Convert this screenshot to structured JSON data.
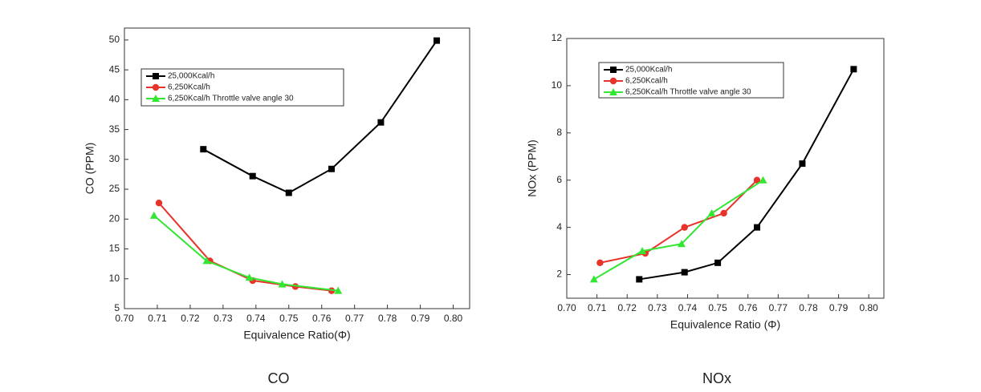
{
  "chart_data": [
    {
      "type": "line",
      "caption": "CO",
      "x_label": "Equivalence Ratio(Φ)",
      "y_label": "CO (PPM)",
      "xlim": [
        0.7,
        0.805
      ],
      "ylim": [
        5,
        52
      ],
      "xticks": [
        {
          "value": 0.7,
          "label": "0.70"
        },
        {
          "value": 0.71,
          "label": "0.71"
        },
        {
          "value": 0.72,
          "label": "0.72"
        },
        {
          "value": 0.73,
          "label": "0.73"
        },
        {
          "value": 0.74,
          "label": "0.74"
        },
        {
          "value": 0.75,
          "label": "0.75"
        },
        {
          "value": 0.76,
          "label": "0.76"
        },
        {
          "value": 0.77,
          "label": "0.77"
        },
        {
          "value": 0.78,
          "label": "0.78"
        },
        {
          "value": 0.79,
          "label": "0.79"
        },
        {
          "value": 0.8,
          "label": "0.80"
        }
      ],
      "yticks": [
        5,
        10,
        15,
        20,
        25,
        30,
        35,
        40,
        45,
        50
      ],
      "legend": "upper-left",
      "series": [
        {
          "name": "25,000Kcal/h",
          "color": "#000000",
          "marker": "square",
          "x": [
            0.724,
            0.739,
            0.75,
            0.763,
            0.778,
            0.795
          ],
          "values": [
            31.7,
            27.2,
            24.4,
            28.4,
            36.2,
            49.9
          ]
        },
        {
          "name": "6,250Kcal/h",
          "color": "#e8332a",
          "marker": "circle",
          "x": [
            0.7105,
            0.726,
            0.739,
            0.752,
            0.763
          ],
          "values": [
            22.7,
            13.0,
            9.7,
            8.7,
            8.0
          ]
        },
        {
          "name": "6,250Kcal/h Throttle valve angle 30",
          "color": "#33e633",
          "marker": "triangle",
          "x": [
            0.709,
            0.725,
            0.738,
            0.748,
            0.765
          ],
          "values": [
            20.6,
            13.0,
            10.2,
            9.1,
            8.0
          ]
        }
      ]
    },
    {
      "type": "line",
      "caption": "NOx",
      "x_label": "Equivalence Ratio (Φ)",
      "y_label": "NOx (PPM)",
      "xlim": [
        0.7,
        0.805
      ],
      "ylim": [
        1,
        12
      ],
      "xticks": [
        {
          "value": 0.7,
          "label": "0.70"
        },
        {
          "value": 0.71,
          "label": "0.71"
        },
        {
          "value": 0.72,
          "label": "0.72"
        },
        {
          "value": 0.73,
          "label": "0.73"
        },
        {
          "value": 0.74,
          "label": "0.74"
        },
        {
          "value": 0.75,
          "label": "0.75"
        },
        {
          "value": 0.76,
          "label": "0.76"
        },
        {
          "value": 0.77,
          "label": "0.77"
        },
        {
          "value": 0.78,
          "label": "0.78"
        },
        {
          "value": 0.79,
          "label": "0.79"
        },
        {
          "value": 0.8,
          "label": "0.80"
        }
      ],
      "yticks": [
        2,
        4,
        6,
        8,
        10,
        12
      ],
      "legend": "upper-left",
      "series": [
        {
          "name": "25,000Kcal/h",
          "color": "#000000",
          "marker": "square",
          "x": [
            0.724,
            0.739,
            0.75,
            0.763,
            0.778,
            0.795
          ],
          "values": [
            1.8,
            2.1,
            2.5,
            4.0,
            6.7,
            10.7
          ]
        },
        {
          "name": "6,250Kcal/h",
          "color": "#e8332a",
          "marker": "circle",
          "x": [
            0.711,
            0.726,
            0.739,
            0.752,
            0.763
          ],
          "values": [
            2.5,
            2.9,
            4.0,
            4.6,
            6.0
          ]
        },
        {
          "name": "6,250Kcal/h Throttle valve angle 30",
          "color": "#33e633",
          "marker": "triangle",
          "x": [
            0.709,
            0.725,
            0.738,
            0.748,
            0.765
          ],
          "values": [
            1.8,
            3.0,
            3.3,
            4.6,
            6.0
          ]
        }
      ]
    }
  ]
}
